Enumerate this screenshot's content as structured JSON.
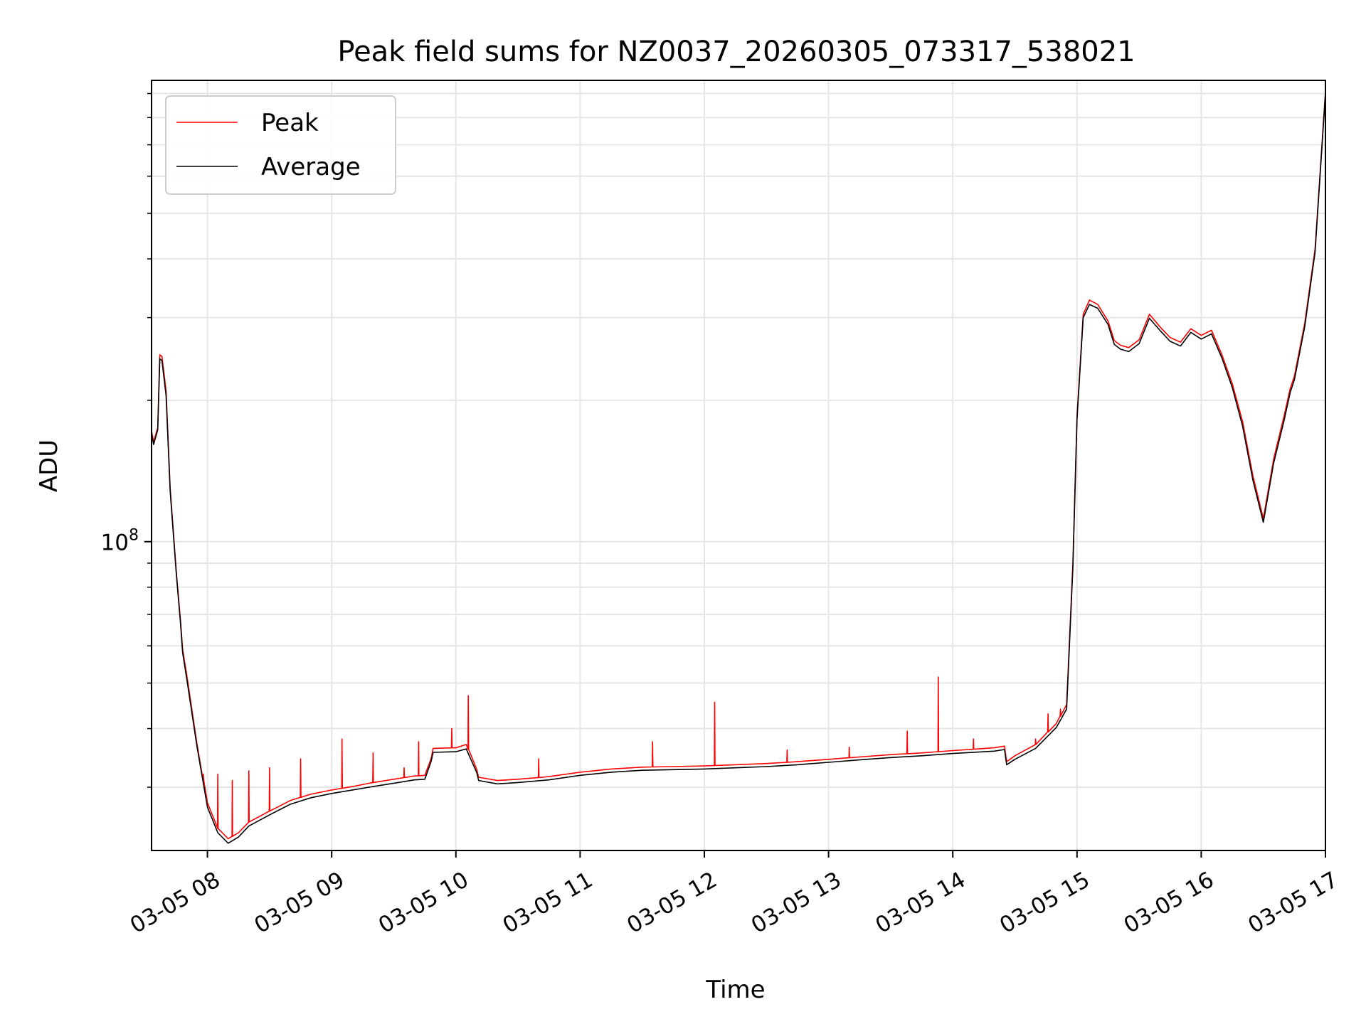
{
  "chart_data": {
    "type": "line",
    "title": "Peak field sums for NZ0037_20260305_073317_538021",
    "xlabel": "Time",
    "ylabel": "ADU",
    "yscale": "log",
    "grid": true,
    "legend_placement": "upper-left",
    "x_range": [
      "03-05 07:33",
      "03-05 17:00"
    ],
    "ylim": [
      22000000,
      960000000
    ],
    "x_ticks": [
      "03-05 08",
      "03-05 09",
      "03-05 10",
      "03-05 11",
      "03-05 12",
      "03-05 13",
      "03-05 14",
      "03-05 15",
      "03-05 16",
      "03-05 17"
    ],
    "y_ticks": [
      {
        "base": "10",
        "exp": "8",
        "value": 100000000
      }
    ],
    "x": [
      "07:33",
      "07:34",
      "07:36",
      "07:37",
      "07:38",
      "07:40",
      "07:42",
      "07:45",
      "07:47",
      "07:48",
      "07:50",
      "07:55",
      "08:00",
      "08:05",
      "08:10",
      "08:15",
      "08:20",
      "08:30",
      "08:40",
      "08:50",
      "09:00",
      "09:10",
      "09:20",
      "09:30",
      "09:40",
      "09:45",
      "09:48",
      "09:49",
      "10:00",
      "10:05",
      "10:10",
      "10:11",
      "10:20",
      "10:30",
      "10:45",
      "11:00",
      "11:15",
      "11:30",
      "11:45",
      "12:00",
      "12:15",
      "12:30",
      "12:45",
      "13:00",
      "13:15",
      "13:30",
      "13:45",
      "14:00",
      "14:20",
      "14:25",
      "14:26",
      "14:30",
      "14:40",
      "14:50",
      "14:55",
      "14:58",
      "15:00",
      "15:03",
      "15:06",
      "15:10",
      "15:15",
      "15:18",
      "15:21",
      "15:25",
      "15:30",
      "15:35",
      "15:40",
      "15:45",
      "15:50",
      "15:55",
      "16:00",
      "16:05",
      "16:10",
      "16:15",
      "16:20",
      "16:25",
      "16:30",
      "16:35",
      "16:40",
      "16:43",
      "16:45",
      "16:50",
      "16:55",
      "17:00"
    ],
    "series": [
      {
        "name": "Peak",
        "color": "#ff0000",
        "values": [
          172000000,
          163000000,
          175000000,
          250000000,
          248000000,
          210000000,
          130000000,
          86000000,
          68000000,
          59000000,
          52000000,
          37000000,
          27800000,
          24500000,
          23300000,
          24000000,
          25300000,
          26700000,
          28100000,
          29000000,
          29600000,
          30100000,
          30700000,
          31200000,
          31700000,
          31800000,
          34500000,
          36300000,
          36400000,
          37000000,
          32800000,
          31500000,
          31000000,
          31200000,
          31600000,
          32300000,
          32800000,
          33100000,
          33200000,
          33300000,
          33500000,
          33700000,
          34000000,
          34400000,
          34800000,
          35200000,
          35500000,
          35900000,
          36400000,
          36700000,
          34000000,
          35000000,
          37000000,
          41000000,
          45000000,
          90000000,
          185000000,
          305000000,
          327000000,
          320000000,
          295000000,
          268000000,
          262000000,
          259000000,
          269000000,
          305000000,
          287000000,
          272000000,
          266000000,
          284000000,
          275000000,
          282000000,
          250000000,
          217000000,
          180000000,
          138000000,
          112000000,
          150000000,
          185000000,
          212000000,
          225000000,
          292000000,
          420000000,
          910000000
        ]
      },
      {
        "name": "Average",
        "color": "#000000",
        "values": [
          170000000,
          161000000,
          173000000,
          245000000,
          243000000,
          205000000,
          128000000,
          85000000,
          67000000,
          58000000,
          51000000,
          36500000,
          27200000,
          24000000,
          22800000,
          23500000,
          24800000,
          26200000,
          27600000,
          28500000,
          29100000,
          29600000,
          30100000,
          30600000,
          31100000,
          31200000,
          34000000,
          35600000,
          35700000,
          36200000,
          32300000,
          31000000,
          30500000,
          30700000,
          31100000,
          31800000,
          32300000,
          32600000,
          32700000,
          32800000,
          33000000,
          33200000,
          33500000,
          33900000,
          34300000,
          34700000,
          35000000,
          35400000,
          35800000,
          36100000,
          33500000,
          34400000,
          36300000,
          40200000,
          44000000,
          88000000,
          182000000,
          300000000,
          320000000,
          314000000,
          290000000,
          263000000,
          257000000,
          254000000,
          264000000,
          299000000,
          282000000,
          267000000,
          261000000,
          279000000,
          270000000,
          277000000,
          246000000,
          213000000,
          176000000,
          135000000,
          110000000,
          147000000,
          181000000,
          208000000,
          221000000,
          287000000,
          413000000,
          900000000
        ]
      }
    ],
    "spikes": {
      "series": "Peak",
      "x": [
        "07:58",
        "08:05",
        "08:12",
        "08:20",
        "08:30",
        "08:45",
        "09:05",
        "09:20",
        "09:35",
        "09:42",
        "09:58",
        "10:06",
        "10:40",
        "11:35",
        "12:05",
        "12:40",
        "13:10",
        "13:38",
        "13:53",
        "14:10",
        "14:40",
        "14:46",
        "14:52"
      ],
      "values": [
        32000000,
        32000000,
        31000000,
        32500000,
        33000000,
        34500000,
        38000000,
        35500000,
        33000000,
        37500000,
        40000000,
        47000000,
        34500000,
        37500000,
        45500000,
        36000000,
        36500000,
        39500000,
        51500000,
        38000000,
        38000000,
        43000000,
        44000000
      ]
    }
  }
}
